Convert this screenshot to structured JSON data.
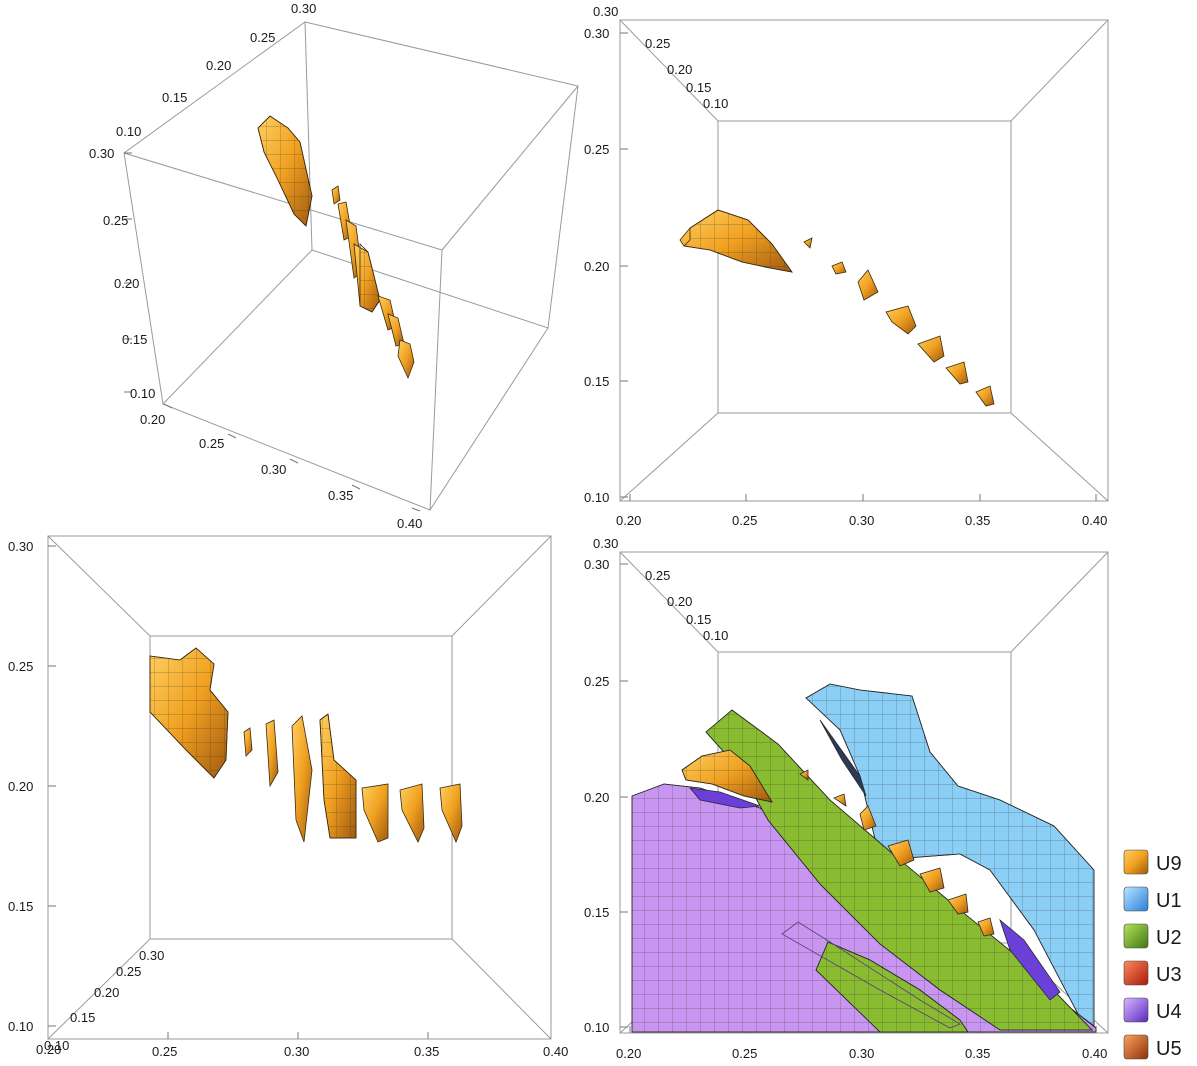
{
  "chart_data": [
    {
      "type": "3d-contour",
      "view": "oblique",
      "x_ticks": [
        "0.20",
        "0.25",
        "0.30",
        "0.35",
        "0.40"
      ],
      "y_ticks": [
        "0.10",
        "0.15",
        "0.20",
        "0.25",
        "0.30"
      ],
      "z_ticks": [
        "0.10",
        "0.15",
        "0.20",
        "0.25",
        "0.30"
      ],
      "xlim": [
        0.2,
        0.4
      ],
      "ylim": [
        0.1,
        0.3
      ],
      "zlim": [
        0.1,
        0.3
      ],
      "series": [
        {
          "name": "U9",
          "color": "#f0a020"
        }
      ]
    },
    {
      "type": "3d-contour",
      "view": "top",
      "x_ticks": [
        "0.20",
        "0.25",
        "0.30",
        "0.35",
        "0.40"
      ],
      "y_ticks": [
        "0.10",
        "0.15",
        "0.20",
        "0.25",
        "0.30"
      ],
      "depth_ticks": [
        "0.25",
        "0.20",
        "0.15",
        "0.10"
      ],
      "series": [
        {
          "name": "U9",
          "color": "#f0a020"
        }
      ]
    },
    {
      "type": "3d-contour",
      "view": "front",
      "x_ticks": [
        "0.20",
        "0.25",
        "0.30",
        "0.35",
        "0.40"
      ],
      "y_ticks": [
        "0.10",
        "0.15",
        "0.20",
        "0.25",
        "0.30"
      ],
      "depth_ticks": [
        "0.10",
        "0.15",
        "0.20",
        "0.25",
        "0.30"
      ],
      "series": [
        {
          "name": "U9",
          "color": "#f0a020"
        }
      ]
    },
    {
      "type": "3d-contour",
      "view": "top",
      "x_ticks": [
        "0.20",
        "0.25",
        "0.30",
        "0.35",
        "0.40"
      ],
      "y_ticks": [
        "0.10",
        "0.15",
        "0.20",
        "0.25",
        "0.30"
      ],
      "depth_ticks": [
        "0.25",
        "0.20",
        "0.15",
        "0.10"
      ],
      "series": [
        {
          "name": "U9",
          "color": "#f0a020"
        },
        {
          "name": "U1",
          "color": "#8cd0f8"
        },
        {
          "name": "U2",
          "color": "#88c030"
        },
        {
          "name": "U4",
          "color": "#c896f0"
        }
      ]
    }
  ],
  "legend": {
    "position": "right",
    "entries": [
      {
        "label": "U9",
        "color": "#f0a020"
      },
      {
        "label": "U1",
        "color": "#4aa8f0"
      },
      {
        "label": "U2",
        "color": "#6aa828"
      },
      {
        "label": "U3",
        "color": "#e04020"
      },
      {
        "label": "U4",
        "color": "#9058e8"
      },
      {
        "label": "U5",
        "color": "#d06020"
      }
    ]
  }
}
